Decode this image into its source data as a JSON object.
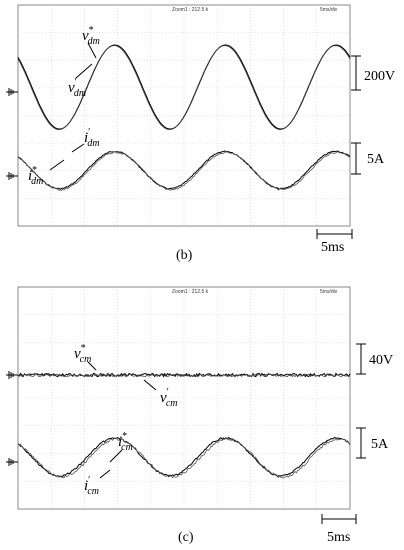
{
  "chart_data": [
    {
      "type": "line",
      "caption": "(b)",
      "header": {
        "zoom": "Zoom1 : 212.5 k",
        "timebase": "5ms/div"
      },
      "time_scale_label": "5ms",
      "traces": [
        {
          "group": "voltage",
          "scale_label": "200V",
          "signal_labels": [
            {
              "base": "v",
              "sup": "*",
              "sub": "dm"
            },
            {
              "base": "v",
              "sup": "′",
              "sub": "dm"
            }
          ],
          "waveform": "sine",
          "cycles_visible": 3,
          "relative_amplitude": 1.0,
          "noise": "none"
        },
        {
          "group": "current",
          "scale_label": "5A",
          "signal_labels": [
            {
              "base": "i",
              "sup": "′",
              "sub": "dm"
            },
            {
              "base": "i",
              "sup": "*",
              "sub": "dm"
            }
          ],
          "waveform": "sine",
          "cycles_visible": 3,
          "relative_amplitude": 0.55,
          "noise": "light"
        }
      ]
    },
    {
      "type": "line",
      "caption": "(c)",
      "header": {
        "zoom": "Zoom1 : 212.5 k",
        "timebase": "5ms/div"
      },
      "time_scale_label": "5ms",
      "traces": [
        {
          "group": "voltage",
          "scale_label": "40V",
          "signal_labels": [
            {
              "base": "v",
              "sup": "*",
              "sub": "cm"
            },
            {
              "base": "v",
              "sup": "′",
              "sub": "cm"
            }
          ],
          "waveform": "flat",
          "cycles_visible": 3,
          "relative_amplitude": 0.0,
          "noise": "heavy"
        },
        {
          "group": "current",
          "scale_label": "5A",
          "signal_labels": [
            {
              "base": "i",
              "sup": "*",
              "sub": "cm"
            },
            {
              "base": "i",
              "sup": "′",
              "sub": "cm"
            }
          ],
          "waveform": "sine",
          "cycles_visible": 3,
          "relative_amplitude": 0.45,
          "noise": "moderate"
        }
      ]
    }
  ]
}
